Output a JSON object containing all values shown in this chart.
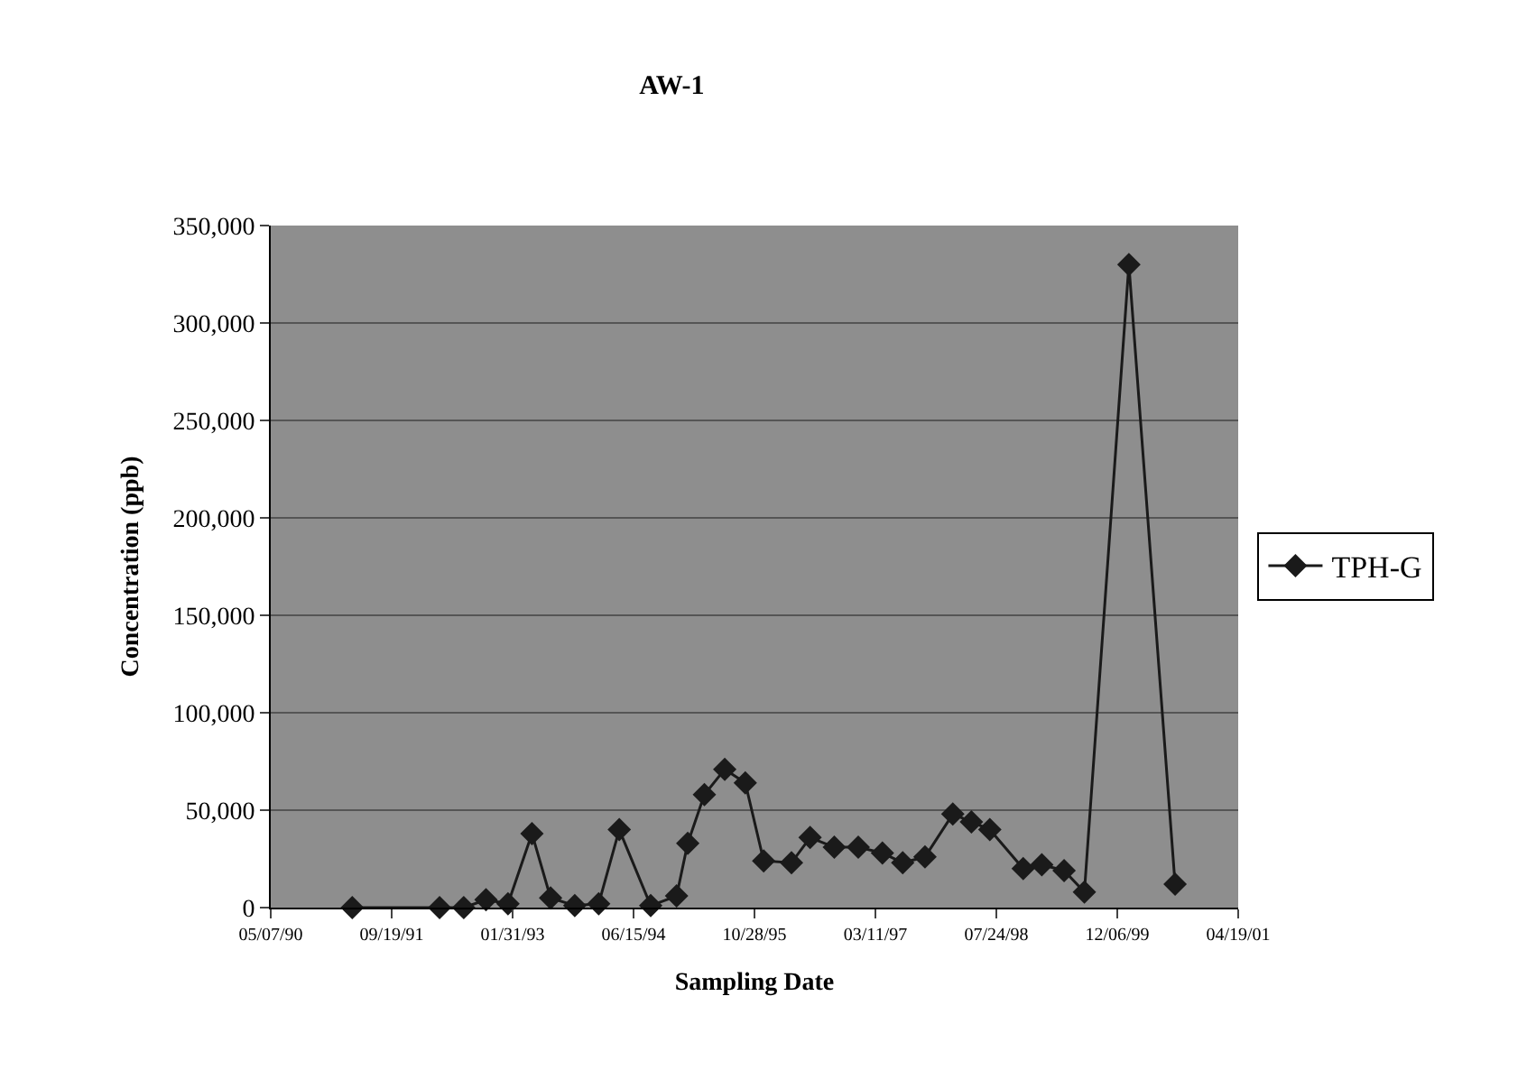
{
  "chart_data": {
    "type": "line",
    "title": "AW-1",
    "xlabel": "Sampling Date",
    "ylabel": "Concentration (ppb)",
    "x": [
      "1991-04-09",
      "1992-04-04",
      "1992-07-13",
      "1992-10-13",
      "1993-01-12",
      "1993-04-21",
      "1993-07-07",
      "1993-10-15",
      "1994-01-22",
      "1994-04-17",
      "1994-08-25",
      "1994-12-10",
      "1995-01-25",
      "1995-04-04",
      "1995-06-27",
      "1995-09-20",
      "1995-12-05",
      "1996-03-29",
      "1996-06-14",
      "1996-09-22",
      "1996-12-30",
      "1997-04-09",
      "1997-07-02",
      "1997-10-02",
      "1998-01-25",
      "1998-04-12",
      "1998-06-27",
      "1998-11-12",
      "1999-01-28",
      "1999-04-30",
      "1999-07-23",
      "2000-01-23",
      "2000-08-01"
    ],
    "series": [
      {
        "name": "TPH-G",
        "color": "#1a1a1a",
        "values": [
          0,
          0,
          0,
          4000,
          2000,
          38000,
          5000,
          1000,
          2000,
          40000,
          1000,
          6000,
          33000,
          58000,
          71000,
          64000,
          24000,
          23000,
          36000,
          31000,
          31000,
          28000,
          23000,
          26000,
          48000,
          44000,
          40000,
          20000,
          22000,
          19000,
          8000,
          330000,
          12000
        ]
      }
    ],
    "xlim": [
      "1990-05-07",
      "2001-04-19"
    ],
    "xticks": [
      {
        "value": "1990-05-07",
        "label": "05/07/90"
      },
      {
        "value": "1991-09-19",
        "label": "09/19/91"
      },
      {
        "value": "1993-01-31",
        "label": "01/31/93"
      },
      {
        "value": "1994-06-15",
        "label": "06/15/94"
      },
      {
        "value": "1995-10-28",
        "label": "10/28/95"
      },
      {
        "value": "1997-03-11",
        "label": "03/11/97"
      },
      {
        "value": "1998-07-24",
        "label": "07/24/98"
      },
      {
        "value": "1999-12-06",
        "label": "12/06/99"
      },
      {
        "value": "2001-04-19",
        "label": "04/19/01"
      }
    ],
    "ylim": [
      0,
      350000
    ],
    "yticks": [
      {
        "value": 0,
        "label": "0"
      },
      {
        "value": 50000,
        "label": "50,000"
      },
      {
        "value": 100000,
        "label": "100,000"
      },
      {
        "value": 150000,
        "label": "150,000"
      },
      {
        "value": 200000,
        "label": "200,000"
      },
      {
        "value": 250000,
        "label": "250,000"
      },
      {
        "value": 300000,
        "label": "300,000"
      },
      {
        "value": 350000,
        "label": "350,000"
      }
    ],
    "grid": "y",
    "legend": "right",
    "marker": "diamond",
    "line_style": "solid"
  }
}
